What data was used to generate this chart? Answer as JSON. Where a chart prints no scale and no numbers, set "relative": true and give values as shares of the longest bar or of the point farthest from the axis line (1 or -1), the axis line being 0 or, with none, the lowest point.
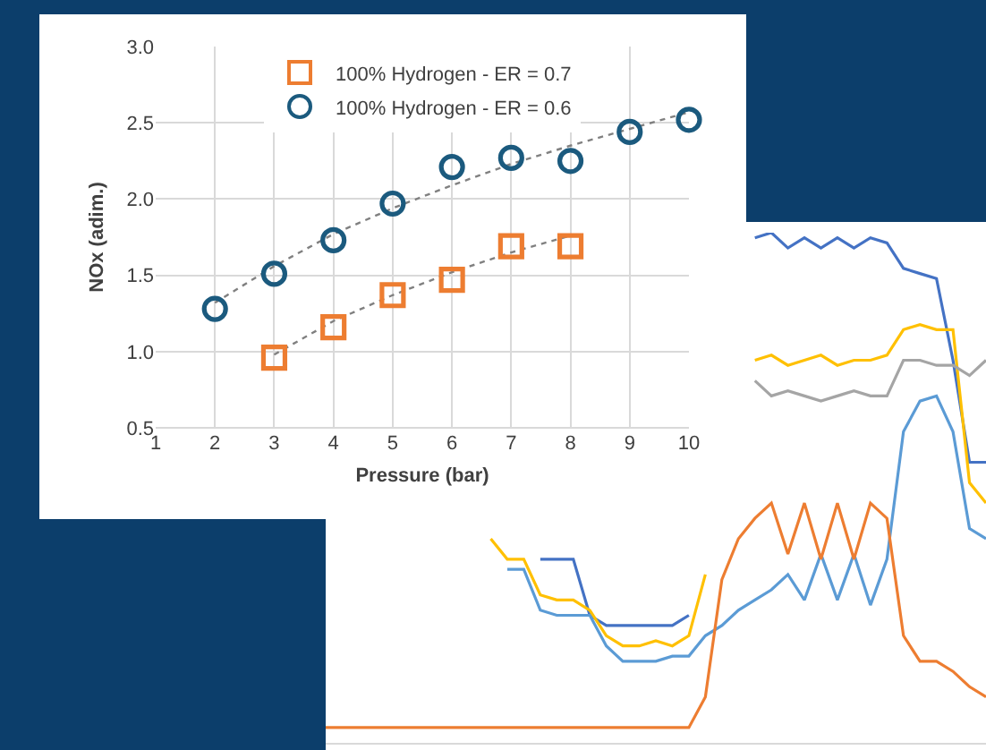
{
  "chart_data": [
    {
      "type": "scatter",
      "xlabel": "Pressure (bar)",
      "ylabel": "NOx (adim.)",
      "xlim": [
        1,
        10
      ],
      "xticks": [
        1,
        2,
        3,
        4,
        5,
        6,
        7,
        8,
        9,
        10
      ],
      "ylim": [
        0.5,
        3.0
      ],
      "yticks": [
        {
          "value": 0.5,
          "label": "0.5"
        },
        {
          "value": 1,
          "label": "1.0"
        },
        {
          "value": 1.5,
          "label": "1.5"
        },
        {
          "value": 2,
          "label": "2.0"
        },
        {
          "value": 2.5,
          "label": "2.5"
        },
        {
          "value": 3,
          "label": "3.0"
        }
      ],
      "grid": true,
      "legend": "top",
      "series": [
        {
          "name": "100% Hydrogen - ER = 0.7",
          "color": "#ed7d31",
          "marker": "square",
          "x": [
            3,
            4,
            5,
            6,
            7,
            8
          ],
          "values": [
            0.96,
            1.16,
            1.37,
            1.47,
            1.69,
            1.69
          ]
        },
        {
          "name": "100% Hydrogen - ER = 0.6",
          "color": "#1b5a7e",
          "marker": "circle",
          "x": [
            2,
            3,
            4,
            5,
            6,
            7,
            8,
            9,
            10
          ],
          "values": [
            1.28,
            1.51,
            1.73,
            1.97,
            2.21,
            2.27,
            2.25,
            2.44,
            2.52
          ]
        },
        {
          "type": "line",
          "color": "#808080",
          "line_style": "dotted",
          "x": [
            3,
            4,
            5,
            6,
            7,
            8
          ],
          "values": [
            0.98,
            1.2,
            1.37,
            1.52,
            1.65,
            1.76
          ]
        },
        {
          "type": "line",
          "color": "#808080",
          "line_style": "dotted",
          "x": [
            2,
            3,
            4,
            5,
            6,
            7,
            8,
            9,
            10
          ],
          "values": [
            1.32,
            1.56,
            1.77,
            1.94,
            2.09,
            2.23,
            2.35,
            2.46,
            2.57
          ]
        }
      ]
    },
    {
      "type": "line",
      "relative": true,
      "categories": [
        null,
        null,
        null,
        null,
        null,
        null,
        null,
        null,
        null,
        null,
        null,
        null,
        null,
        null,
        null,
        null,
        null,
        null,
        null,
        null,
        null,
        null,
        null,
        null,
        null,
        null,
        null,
        null,
        null,
        null,
        null,
        null,
        null,
        null,
        null,
        null,
        null,
        null,
        null,
        null,
        null
      ],
      "series": [
        {
          "color": "#4472c4",
          "values": [
            null,
            null,
            null,
            null,
            null,
            null,
            null,
            null,
            null,
            null,
            null,
            null,
            null,
            0.36,
            0.36,
            0.36,
            0.25,
            0.23,
            0.23,
            0.23,
            0.23,
            0.23,
            0.25,
            null,
            null,
            null,
            0.99,
            1,
            0.97,
            0.99,
            0.97,
            0.99,
            0.97,
            0.99,
            0.98,
            0.93,
            0.92,
            0.91,
            0.75,
            0.55,
            0.55
          ]
        },
        {
          "color": "#ffc000",
          "values": [
            null,
            null,
            null,
            null,
            null,
            null,
            null,
            null,
            null,
            null,
            0.4,
            0.36,
            0.36,
            0.29,
            0.28,
            0.28,
            0.26,
            0.21,
            0.19,
            0.19,
            0.2,
            0.19,
            0.21,
            0.33,
            null,
            null,
            0.75,
            0.76,
            0.74,
            0.75,
            0.76,
            0.74,
            0.75,
            0.75,
            0.76,
            0.81,
            0.82,
            0.81,
            0.81,
            0.51,
            0.47
          ]
        },
        {
          "color": "#a5a5a5",
          "values": [
            null,
            null,
            null,
            null,
            null,
            null,
            null,
            null,
            null,
            null,
            null,
            null,
            null,
            null,
            null,
            null,
            null,
            null,
            null,
            null,
            null,
            null,
            null,
            null,
            null,
            null,
            0.71,
            0.68,
            0.69,
            0.68,
            0.67,
            0.68,
            0.69,
            0.68,
            0.68,
            0.75,
            0.75,
            0.74,
            0.74,
            0.72,
            0.75
          ]
        },
        {
          "color": "#5b9bd5",
          "values": [
            null,
            null,
            null,
            null,
            null,
            null,
            null,
            null,
            null,
            null,
            null,
            0.34,
            0.34,
            0.26,
            0.25,
            0.25,
            0.25,
            0.19,
            0.16,
            0.16,
            0.16,
            0.17,
            0.17,
            0.21,
            0.23,
            0.26,
            0.28,
            0.3,
            0.33,
            0.28,
            0.37,
            0.28,
            0.37,
            0.27,
            0.36,
            0.61,
            0.67,
            0.68,
            0.61,
            0.42,
            0.4
          ]
        },
        {
          "color": "#ed7d31",
          "values": [
            0.03,
            0.03,
            0.03,
            0.03,
            0.03,
            0.03,
            0.03,
            0.03,
            0.03,
            0.03,
            0.03,
            0.03,
            0.03,
            0.03,
            0.03,
            0.03,
            0.03,
            0.03,
            0.03,
            0.03,
            0.03,
            0.03,
            0.03,
            0.09,
            0.32,
            0.4,
            0.44,
            0.47,
            0.37,
            0.47,
            0.36,
            0.47,
            0.36,
            0.47,
            0.44,
            0.21,
            0.16,
            0.16,
            0.14,
            0.11,
            0.09
          ]
        }
      ]
    }
  ]
}
